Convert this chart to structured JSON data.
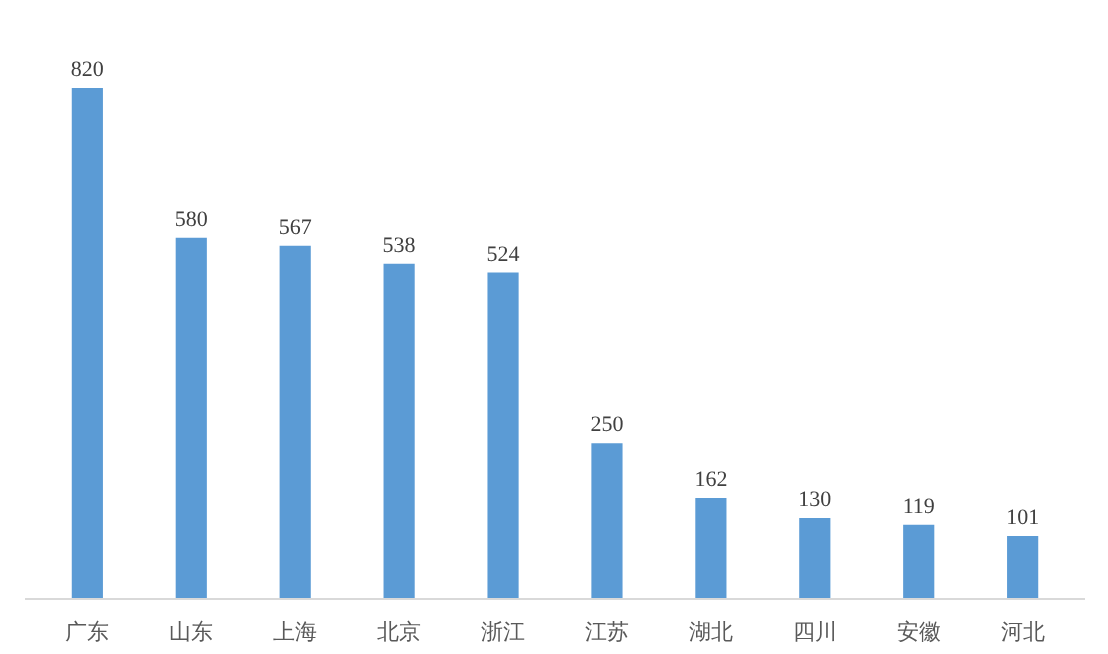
{
  "chart_data": {
    "type": "bar",
    "categories": [
      "广东",
      "山东",
      "上海",
      "北京",
      "浙江",
      "江苏",
      "湖北",
      "四川",
      "安徽",
      "河北"
    ],
    "values": [
      820,
      580,
      567,
      538,
      524,
      250,
      162,
      130,
      119,
      101
    ],
    "color": "#5b9bd5",
    "data_labels": true,
    "grid": false
  }
}
